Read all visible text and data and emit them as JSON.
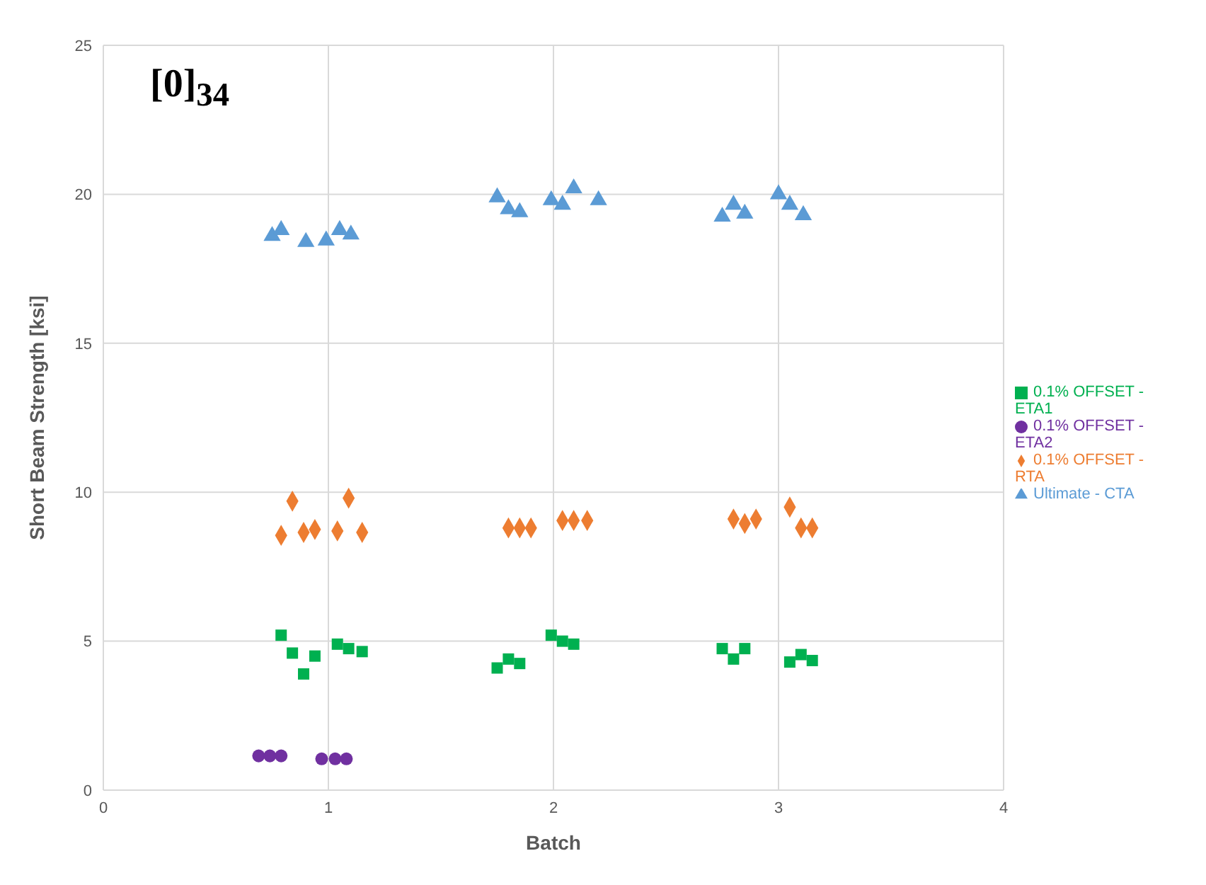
{
  "chart_data": {
    "type": "scatter",
    "title": "[0]$_{34}$",
    "xlabel": "Batch",
    "ylabel": "Short Beam Strength [ksi]",
    "xlim": [
      0,
      4
    ],
    "xticks": [
      0,
      1,
      2,
      3,
      4
    ],
    "ylim": [
      0,
      25
    ],
    "yticks": [
      0,
      5,
      10,
      15,
      20,
      25
    ],
    "grid": true,
    "legend": "right",
    "series": [
      {
        "name": "Ultimate - CTA",
        "color": "#5b9bd5",
        "marker": "triangle",
        "x": [
          0.75,
          0.79,
          0.9,
          0.99,
          1.05,
          1.1,
          1.75,
          1.8,
          1.85,
          1.99,
          2.04,
          2.09,
          2.2,
          2.75,
          2.8,
          2.85,
          3.0,
          3.05,
          3.11
        ],
        "values": [
          18.6,
          18.8,
          18.4,
          18.45,
          18.8,
          18.65,
          19.9,
          19.5,
          19.4,
          19.8,
          19.65,
          20.2,
          19.8,
          19.25,
          19.65,
          19.35,
          20.0,
          19.65,
          19.3
        ]
      },
      {
        "name": "0.1% OFFSET - RTA",
        "color": "#ed7d31",
        "marker": "diamond",
        "x": [
          0.79,
          0.84,
          0.89,
          0.94,
          1.04,
          1.09,
          1.15,
          1.8,
          1.85,
          1.9,
          2.04,
          2.09,
          2.15,
          2.8,
          2.85,
          2.9,
          3.05,
          3.1,
          3.15
        ],
        "values": [
          8.55,
          9.7,
          8.65,
          8.75,
          8.7,
          9.8,
          8.65,
          8.8,
          8.8,
          8.8,
          9.05,
          9.05,
          9.05,
          9.1,
          8.95,
          9.1,
          9.5,
          8.8,
          8.8
        ]
      },
      {
        "name": "0.1% OFFSET - ETA1",
        "color": "#00b050",
        "marker": "square",
        "x": [
          0.79,
          0.84,
          0.89,
          0.94,
          1.04,
          1.09,
          1.15,
          1.75,
          1.8,
          1.85,
          1.99,
          2.04,
          2.09,
          2.75,
          2.8,
          2.85,
          3.05,
          3.1,
          3.15
        ],
        "values": [
          5.2,
          4.6,
          3.9,
          4.5,
          4.9,
          4.75,
          4.65,
          4.1,
          4.4,
          4.25,
          5.2,
          5.0,
          4.9,
          4.75,
          4.4,
          4.75,
          4.3,
          4.55,
          4.35
        ]
      },
      {
        "name": "0.1% OFFSET - ETA2",
        "color": "#7030a0",
        "marker": "circle",
        "x": [
          0.69,
          0.74,
          0.79,
          0.97,
          1.03,
          1.08
        ],
        "values": [
          1.15,
          1.15,
          1.15,
          1.05,
          1.05,
          1.05
        ]
      }
    ]
  }
}
